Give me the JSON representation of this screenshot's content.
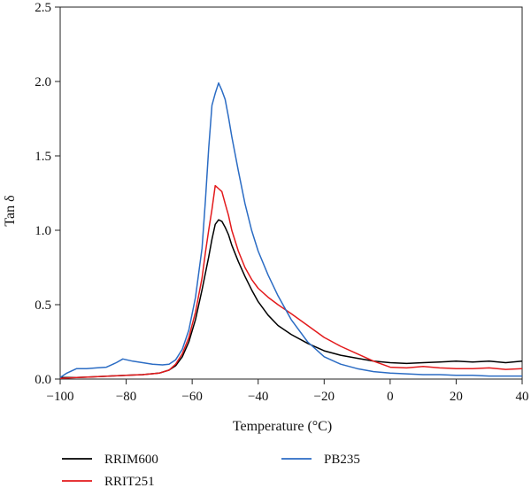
{
  "chart_data": {
    "type": "line",
    "title": "",
    "xlabel": "Temperature (°C)",
    "ylabel": "Tan δ",
    "xlim": [
      -100,
      40
    ],
    "ylim": [
      0,
      2.5
    ],
    "xticks": [
      -100,
      -80,
      -60,
      -40,
      -20,
      0,
      20,
      40
    ],
    "xtick_labels": [
      "−100",
      "−80",
      "−60",
      "−40",
      "−20",
      "0",
      "20",
      "40"
    ],
    "yticks": [
      0,
      0.5,
      1.0,
      1.5,
      2.0,
      2.5
    ],
    "ytick_labels": [
      "0.0",
      "0.5",
      "1.0",
      "1.5",
      "2.0",
      "2.5"
    ],
    "grid": false,
    "legend_position": "bottom",
    "series": [
      {
        "name": "RRIM600",
        "color": "#000000",
        "x": [
          -100,
          -95,
          -90,
          -85,
          -80,
          -75,
          -70,
          -67,
          -65,
          -63,
          -61,
          -59,
          -57,
          -55,
          -54,
          -53,
          -52,
          -51,
          -50,
          -49,
          -48,
          -46,
          -44,
          -42,
          -40,
          -37,
          -34,
          -30,
          -25,
          -20,
          -15,
          -10,
          -5,
          0,
          5,
          10,
          15,
          20,
          25,
          30,
          35,
          40
        ],
        "y": [
          0.01,
          0.01,
          0.015,
          0.02,
          0.025,
          0.03,
          0.04,
          0.06,
          0.09,
          0.15,
          0.25,
          0.4,
          0.6,
          0.82,
          0.94,
          1.04,
          1.07,
          1.06,
          1.02,
          0.97,
          0.9,
          0.79,
          0.69,
          0.6,
          0.52,
          0.43,
          0.36,
          0.3,
          0.24,
          0.19,
          0.16,
          0.14,
          0.12,
          0.11,
          0.105,
          0.11,
          0.115,
          0.12,
          0.115,
          0.12,
          0.11,
          0.12
        ]
      },
      {
        "name": "RRIT251",
        "color": "#e31a1c",
        "x": [
          -100,
          -95,
          -90,
          -85,
          -80,
          -75,
          -70,
          -67,
          -65,
          -63,
          -61,
          -59,
          -57,
          -56,
          -55,
          -54,
          -53,
          -52,
          -51,
          -50,
          -49,
          -48,
          -46,
          -44,
          -42,
          -40,
          -37,
          -34,
          -30,
          -25,
          -20,
          -15,
          -10,
          -5,
          0,
          5,
          10,
          15,
          20,
          25,
          30,
          35,
          40
        ],
        "y": [
          0.005,
          0.01,
          0.015,
          0.02,
          0.025,
          0.03,
          0.04,
          0.06,
          0.1,
          0.17,
          0.28,
          0.45,
          0.68,
          0.85,
          1.0,
          1.14,
          1.3,
          1.28,
          1.26,
          1.18,
          1.1,
          1.0,
          0.86,
          0.75,
          0.67,
          0.61,
          0.55,
          0.5,
          0.44,
          0.36,
          0.28,
          0.22,
          0.17,
          0.12,
          0.08,
          0.075,
          0.085,
          0.075,
          0.07,
          0.07,
          0.075,
          0.065,
          0.07
        ]
      },
      {
        "name": "PB235",
        "color": "#2b6cc4",
        "x": [
          -100,
          -98,
          -95,
          -92,
          -89,
          -86,
          -83,
          -81,
          -78,
          -75,
          -72,
          -69,
          -67,
          -65,
          -63,
          -61,
          -59,
          -57,
          -56,
          -55,
          -54,
          -53,
          -52,
          -51,
          -50,
          -49,
          -48,
          -46,
          -44,
          -42,
          -40,
          -37,
          -34,
          -30,
          -25,
          -20,
          -15,
          -10,
          -5,
          0,
          5,
          10,
          15,
          20,
          25,
          30,
          35,
          40
        ],
        "y": [
          0.01,
          0.04,
          0.07,
          0.07,
          0.075,
          0.08,
          0.11,
          0.135,
          0.12,
          0.11,
          0.1,
          0.095,
          0.1,
          0.13,
          0.2,
          0.33,
          0.55,
          0.88,
          1.2,
          1.55,
          1.84,
          1.92,
          1.99,
          1.94,
          1.88,
          1.76,
          1.63,
          1.4,
          1.18,
          1.0,
          0.86,
          0.7,
          0.56,
          0.4,
          0.25,
          0.15,
          0.1,
          0.07,
          0.05,
          0.04,
          0.035,
          0.03,
          0.03,
          0.025,
          0.025,
          0.02,
          0.02,
          0.02
        ]
      }
    ]
  }
}
